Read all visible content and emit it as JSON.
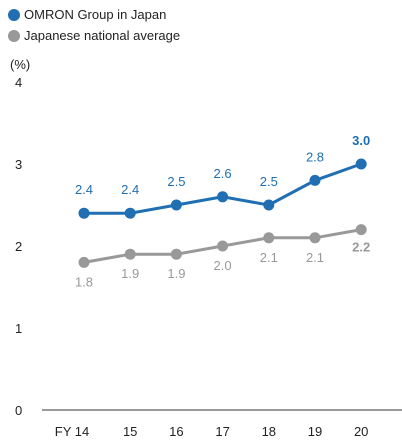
{
  "chart_data": {
    "type": "line",
    "unit_label": "(%)",
    "categories": [
      "FY 14",
      "15",
      "16",
      "17",
      "18",
      "19",
      "20"
    ],
    "ylim": [
      0,
      4
    ],
    "yticks": [
      0,
      1,
      2,
      3,
      4
    ],
    "legend_position": "top-left",
    "grid": false,
    "series": [
      {
        "name": "OMRON Group in Japan",
        "color": "#1f6fb2",
        "values": [
          2.4,
          2.4,
          2.5,
          2.6,
          2.5,
          2.8,
          3.0
        ],
        "labels": [
          "2.4",
          "2.4",
          "2.5",
          "2.6",
          "2.5",
          "2.8",
          "3.0"
        ]
      },
      {
        "name": "Japanese national average",
        "color": "#999999",
        "values": [
          1.8,
          1.9,
          1.9,
          2.0,
          2.1,
          2.1,
          2.2
        ],
        "labels": [
          "1.8",
          "1.9",
          "1.9",
          "2.0",
          "2.1",
          "2.1",
          "2.2"
        ]
      }
    ]
  }
}
